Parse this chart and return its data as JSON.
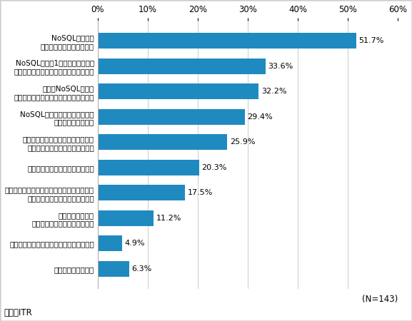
{
  "categories": [
    "特に何もしていない",
    "既に業務に導入し、日々運用を行っている",
    "補完的ではあるが\n既に一部の業務に適用している",
    "外部セミナーや研修コースなどを活用して、\n専門的な知識の習得を進めている",
    "専任者を充てて検証を行っている",
    "自社・自部門の利用目的に沿って、\n特定の機能について検証している",
    "NoSQLの特徴的な機能について\n幅広く検証している",
    "複数のNoSQL製品の\n動作確認をしている・しようとしている",
    "NoSQL製品を1つ選んで、簡単な\n動作確認をしている・しようとしている",
    "NoSQLについて\n幅広く情報収集をしている"
  ],
  "values": [
    6.3,
    4.9,
    11.2,
    17.5,
    20.3,
    25.9,
    29.4,
    32.2,
    33.6,
    51.7
  ],
  "bar_color": "#1f8ac0",
  "xlim": [
    0,
    60
  ],
  "xticks": [
    0,
    10,
    20,
    30,
    40,
    50,
    60
  ],
  "xtick_labels": [
    "0%",
    "10%",
    "20%",
    "30%",
    "40%",
    "50%",
    "60%"
  ],
  "annotation_note": "(N=143)",
  "source_text": "出典：ITR",
  "value_fontsize": 8.0,
  "label_fontsize": 7.5,
  "tick_fontsize": 8.5
}
